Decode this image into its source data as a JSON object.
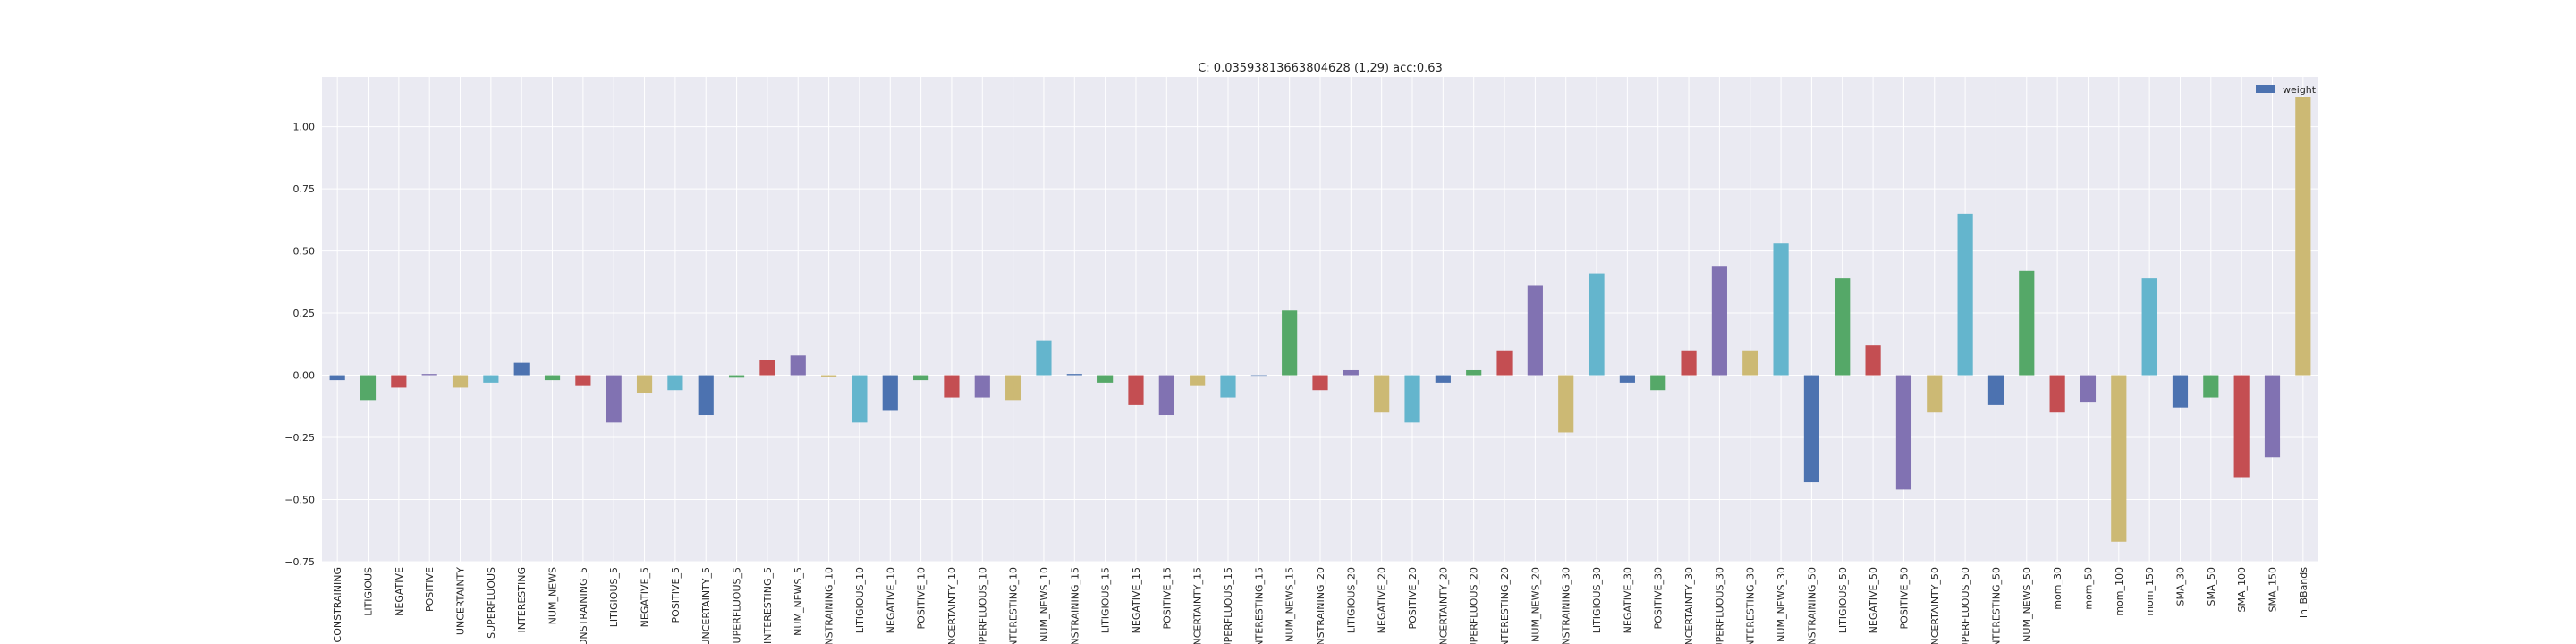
{
  "chart_data": {
    "type": "bar",
    "title": "C: 0.03593813663804628 (1,29) acc:0.63",
    "xlabel": "",
    "ylabel": "",
    "ylim": [
      -0.75,
      1.2
    ],
    "yticks": [
      -0.75,
      -0.5,
      -0.25,
      0.0,
      0.25,
      0.5,
      0.75,
      1.0
    ],
    "ytick_labels": [
      "−0.75",
      "−0.50",
      "−0.25",
      "0.00",
      "0.25",
      "0.50",
      "0.75",
      "1.00"
    ],
    "grid": true,
    "legend_position": "top-right",
    "legend": [
      "weight"
    ],
    "colors": [
      "#4c72b0",
      "#55a868",
      "#c44e52",
      "#8172b2",
      "#ccb974",
      "#64b5cd"
    ],
    "categories": [
      "CONSTRAINING",
      "LITIGIOUS",
      "NEGATIVE",
      "POSITIVE",
      "UNCERTAINTY",
      "SUPERFLUOUS",
      "INTERESTING",
      "NUM_NEWS",
      "CONSTRAINING_5",
      "LITIGIOUS_5",
      "NEGATIVE_5",
      "POSITIVE_5",
      "UNCERTAINTY_5",
      "SUPERFLUOUS_5",
      "INTERESTING_5",
      "NUM_NEWS_5",
      "CONSTRAINING_10",
      "LITIGIOUS_10",
      "NEGATIVE_10",
      "POSITIVE_10",
      "UNCERTAINTY_10",
      "SUPERFLUOUS_10",
      "INTERESTING_10",
      "NUM_NEWS_10",
      "CONSTRAINING_15",
      "LITIGIOUS_15",
      "NEGATIVE_15",
      "POSITIVE_15",
      "UNCERTAINTY_15",
      "SUPERFLUOUS_15",
      "INTERESTING_15",
      "NUM_NEWS_15",
      "CONSTRAINING_20",
      "LITIGIOUS_20",
      "NEGATIVE_20",
      "POSITIVE_20",
      "UNCERTAINTY_20",
      "SUPERFLUOUS_20",
      "INTERESTING_20",
      "NUM_NEWS_20",
      "CONSTRAINING_30",
      "LITIGIOUS_30",
      "NEGATIVE_30",
      "POSITIVE_30",
      "UNCERTAINTY_30",
      "SUPERFLUOUS_30",
      "INTERESTING_30",
      "NUM_NEWS_30",
      "CONSTRAINING_50",
      "LITIGIOUS_50",
      "NEGATIVE_50",
      "POSITIVE_50",
      "UNCERTAINTY_50",
      "SUPERFLUOUS_50",
      "INTERESTING_50",
      "NUM_NEWS_50",
      "mom_30",
      "mom_50",
      "mom_100",
      "mom_150",
      "SMA_30",
      "SMA_50",
      "SMA_100",
      "SMA_150",
      "in_BBands"
    ],
    "series": [
      {
        "name": "weight",
        "values": [
          -0.02,
          -0.1,
          -0.05,
          0.005,
          -0.05,
          -0.03,
          0.05,
          -0.02,
          -0.04,
          -0.19,
          -0.07,
          -0.06,
          -0.16,
          -0.01,
          0.06,
          0.08,
          -0.005,
          -0.19,
          -0.14,
          -0.02,
          -0.09,
          -0.09,
          -0.1,
          0.14,
          0.005,
          -0.03,
          -0.12,
          -0.16,
          -0.04,
          -0.09,
          0.0,
          0.26,
          -0.06,
          0.02,
          -0.15,
          -0.19,
          -0.03,
          0.02,
          0.1,
          0.36,
          -0.23,
          0.41,
          -0.03,
          -0.06,
          0.1,
          0.44,
          0.1,
          0.53,
          -0.43,
          0.39,
          0.12,
          -0.46,
          -0.15,
          0.65,
          -0.12,
          0.42,
          -0.15,
          -0.11,
          -0.67,
          0.39,
          -0.13,
          -0.09,
          -0.41,
          -0.33,
          1.12
        ]
      }
    ]
  }
}
